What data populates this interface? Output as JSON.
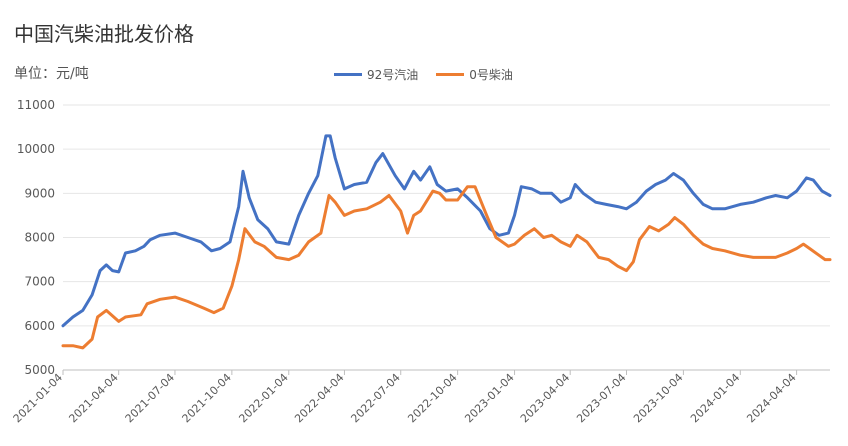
{
  "chart_data": {
    "type": "line",
    "title": "中国汽柴油批发价格",
    "unit_label": "单位：元/吨",
    "ylim": [
      5000,
      11000
    ],
    "yticks": [
      5000,
      6000,
      7000,
      8000,
      9000,
      10000,
      11000
    ],
    "x_tick_labels": [
      "2021-01-04",
      "2021-04-04",
      "2021-07-04",
      "2021-10-04",
      "2022-01-04",
      "2022-04-04",
      "2022-07-04",
      "2022-10-04",
      "2023-01-04",
      "2023-04-04",
      "2023-07-04",
      "2023-10-04",
      "2024-01-04",
      "2024-04-04"
    ],
    "x_range": [
      "2021-01-04",
      "2024-05-28"
    ],
    "grid": true,
    "legend_position": "top-center",
    "series": [
      {
        "name": "92号汽油",
        "color": "#4472C4",
        "points": [
          [
            "2021-01-04",
            6000
          ],
          [
            "2021-01-20",
            6200
          ],
          [
            "2021-02-05",
            6350
          ],
          [
            "2021-02-20",
            6700
          ],
          [
            "2021-03-05",
            7250
          ],
          [
            "2021-03-15",
            7380
          ],
          [
            "2021-03-25",
            7250
          ],
          [
            "2021-04-04",
            7220
          ],
          [
            "2021-04-15",
            7650
          ],
          [
            "2021-05-01",
            7700
          ],
          [
            "2021-05-15",
            7800
          ],
          [
            "2021-05-25",
            7950
          ],
          [
            "2021-06-10",
            8050
          ],
          [
            "2021-07-04",
            8100
          ],
          [
            "2021-07-25",
            8000
          ],
          [
            "2021-08-15",
            7900
          ],
          [
            "2021-09-01",
            7700
          ],
          [
            "2021-09-15",
            7750
          ],
          [
            "2021-10-01",
            7900
          ],
          [
            "2021-10-15",
            8700
          ],
          [
            "2021-10-22",
            9500
          ],
          [
            "2021-11-01",
            8900
          ],
          [
            "2021-11-15",
            8400
          ],
          [
            "2021-12-01",
            8200
          ],
          [
            "2021-12-15",
            7900
          ],
          [
            "2022-01-04",
            7850
          ],
          [
            "2022-01-20",
            8500
          ],
          [
            "2022-02-05",
            9000
          ],
          [
            "2022-02-20",
            9400
          ],
          [
            "2022-03-05",
            10300
          ],
          [
            "2022-03-12",
            10300
          ],
          [
            "2022-03-20",
            9800
          ],
          [
            "2022-04-04",
            9100
          ],
          [
            "2022-04-20",
            9200
          ],
          [
            "2022-05-10",
            9250
          ],
          [
            "2022-05-25",
            9700
          ],
          [
            "2022-06-05",
            9900
          ],
          [
            "2022-06-25",
            9400
          ],
          [
            "2022-07-10",
            9100
          ],
          [
            "2022-07-25",
            9500
          ],
          [
            "2022-08-05",
            9300
          ],
          [
            "2022-08-20",
            9600
          ],
          [
            "2022-09-01",
            9200
          ],
          [
            "2022-09-15",
            9050
          ],
          [
            "2022-10-04",
            9100
          ],
          [
            "2022-10-20",
            8900
          ],
          [
            "2022-11-10",
            8600
          ],
          [
            "2022-11-25",
            8200
          ],
          [
            "2022-12-10",
            8050
          ],
          [
            "2022-12-25",
            8100
          ],
          [
            "2023-01-04",
            8500
          ],
          [
            "2023-01-15",
            9150
          ],
          [
            "2023-02-01",
            9100
          ],
          [
            "2023-02-15",
            9000
          ],
          [
            "2023-03-05",
            9000
          ],
          [
            "2023-03-20",
            8800
          ],
          [
            "2023-04-04",
            8900
          ],
          [
            "2023-04-12",
            9200
          ],
          [
            "2023-04-25",
            9000
          ],
          [
            "2023-05-15",
            8800
          ],
          [
            "2023-06-01",
            8750
          ],
          [
            "2023-06-20",
            8700
          ],
          [
            "2023-07-04",
            8650
          ],
          [
            "2023-07-20",
            8800
          ],
          [
            "2023-08-05",
            9050
          ],
          [
            "2023-08-20",
            9200
          ],
          [
            "2023-09-05",
            9300
          ],
          [
            "2023-09-18",
            9450
          ],
          [
            "2023-10-04",
            9300
          ],
          [
            "2023-10-20",
            9000
          ],
          [
            "2023-11-05",
            8750
          ],
          [
            "2023-11-20",
            8650
          ],
          [
            "2023-12-10",
            8650
          ],
          [
            "2024-01-04",
            8750
          ],
          [
            "2024-01-25",
            8800
          ],
          [
            "2024-02-15",
            8900
          ],
          [
            "2024-03-01",
            8950
          ],
          [
            "2024-03-20",
            8900
          ],
          [
            "2024-04-04",
            9050
          ],
          [
            "2024-04-20",
            9350
          ],
          [
            "2024-05-01",
            9300
          ],
          [
            "2024-05-15",
            9050
          ],
          [
            "2024-05-28",
            8950
          ]
        ]
      },
      {
        "name": "0号柴油",
        "color": "#ED7D31",
        "points": [
          [
            "2021-01-04",
            5550
          ],
          [
            "2021-01-20",
            5550
          ],
          [
            "2021-02-05",
            5500
          ],
          [
            "2021-02-20",
            5700
          ],
          [
            "2021-03-01",
            6200
          ],
          [
            "2021-03-15",
            6350
          ],
          [
            "2021-04-04",
            6100
          ],
          [
            "2021-04-15",
            6200
          ],
          [
            "2021-05-10",
            6250
          ],
          [
            "2021-05-20",
            6500
          ],
          [
            "2021-06-10",
            6600
          ],
          [
            "2021-07-04",
            6650
          ],
          [
            "2021-07-25",
            6550
          ],
          [
            "2021-08-20",
            6400
          ],
          [
            "2021-09-05",
            6300
          ],
          [
            "2021-09-20",
            6400
          ],
          [
            "2021-10-04",
            6900
          ],
          [
            "2021-10-15",
            7500
          ],
          [
            "2021-10-25",
            8200
          ],
          [
            "2021-11-10",
            7900
          ],
          [
            "2021-11-25",
            7800
          ],
          [
            "2021-12-15",
            7550
          ],
          [
            "2022-01-04",
            7500
          ],
          [
            "2022-01-20",
            7600
          ],
          [
            "2022-02-05",
            7900
          ],
          [
            "2022-02-25",
            8100
          ],
          [
            "2022-03-10",
            8950
          ],
          [
            "2022-03-20",
            8800
          ],
          [
            "2022-04-04",
            8500
          ],
          [
            "2022-04-20",
            8600
          ],
          [
            "2022-05-10",
            8650
          ],
          [
            "2022-06-01",
            8800
          ],
          [
            "2022-06-15",
            8950
          ],
          [
            "2022-07-04",
            8600
          ],
          [
            "2022-07-15",
            8100
          ],
          [
            "2022-07-25",
            8500
          ],
          [
            "2022-08-05",
            8600
          ],
          [
            "2022-08-25",
            9050
          ],
          [
            "2022-09-05",
            9000
          ],
          [
            "2022-09-15",
            8850
          ],
          [
            "2022-10-04",
            8850
          ],
          [
            "2022-10-20",
            9150
          ],
          [
            "2022-11-01",
            9150
          ],
          [
            "2022-11-20",
            8500
          ],
          [
            "2022-12-05",
            8000
          ],
          [
            "2022-12-25",
            7800
          ],
          [
            "2023-01-04",
            7850
          ],
          [
            "2023-01-20",
            8050
          ],
          [
            "2023-02-05",
            8200
          ],
          [
            "2023-02-20",
            8000
          ],
          [
            "2023-03-05",
            8050
          ],
          [
            "2023-03-20",
            7900
          ],
          [
            "2023-04-04",
            7800
          ],
          [
            "2023-04-15",
            8050
          ],
          [
            "2023-05-01",
            7900
          ],
          [
            "2023-05-20",
            7550
          ],
          [
            "2023-06-05",
            7500
          ],
          [
            "2023-06-20",
            7350
          ],
          [
            "2023-07-04",
            7250
          ],
          [
            "2023-07-15",
            7450
          ],
          [
            "2023-07-25",
            7950
          ],
          [
            "2023-08-10",
            8250
          ],
          [
            "2023-08-25",
            8150
          ],
          [
            "2023-09-10",
            8300
          ],
          [
            "2023-09-20",
            8450
          ],
          [
            "2023-10-04",
            8300
          ],
          [
            "2023-10-20",
            8050
          ],
          [
            "2023-11-05",
            7850
          ],
          [
            "2023-11-20",
            7750
          ],
          [
            "2023-12-10",
            7700
          ],
          [
            "2024-01-04",
            7600
          ],
          [
            "2024-01-25",
            7550
          ],
          [
            "2024-02-15",
            7550
          ],
          [
            "2024-03-01",
            7550
          ],
          [
            "2024-03-20",
            7650
          ],
          [
            "2024-04-04",
            7750
          ],
          [
            "2024-04-15",
            7850
          ],
          [
            "2024-04-25",
            7750
          ],
          [
            "2024-05-10",
            7600
          ],
          [
            "2024-05-20",
            7500
          ],
          [
            "2024-05-28",
            7500
          ]
        ]
      }
    ]
  }
}
